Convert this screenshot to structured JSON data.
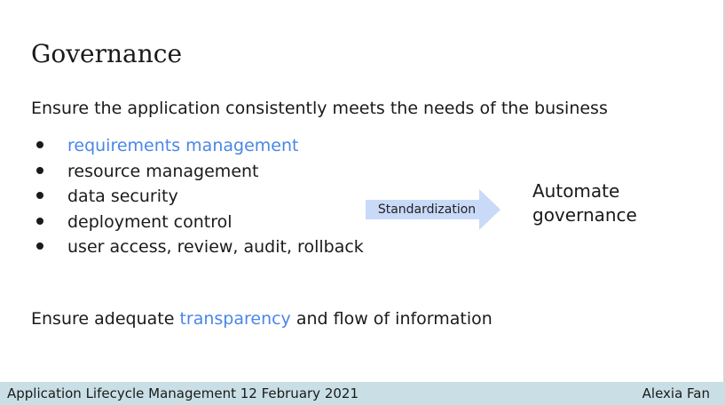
{
  "slide": {
    "title": "Governance",
    "line1": "Ensure the application consistently meets the needs of the business",
    "bullets": [
      {
        "text": "requirements management",
        "color": "#4a86e8"
      },
      {
        "text": "resource management"
      },
      {
        "text": "data security"
      },
      {
        "text": "deployment control"
      },
      {
        "text": "user access, review, audit, rollback"
      }
    ],
    "arrow_label": "Standardization",
    "arrow_color": "#c9daf8",
    "automate_line1": "Automate",
    "automate_line2": "governance",
    "line2_prefix": "Ensure adequate ",
    "line2_link": "transparency",
    "line2_suffix": " and flow of information",
    "link_color": "#4a86e8"
  },
  "footer": {
    "left": "Application Lifecycle Management 12 February 2021",
    "right": "Alexia Fan",
    "background": "#c9dfe5"
  }
}
